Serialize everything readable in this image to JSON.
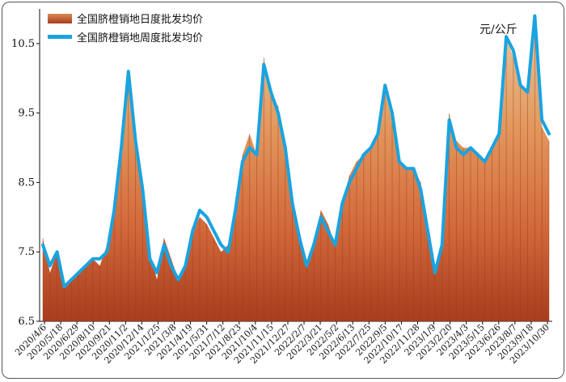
{
  "chart_data": {
    "type": "area",
    "unit_label": "元/公斤",
    "ylim": [
      6.5,
      11.0
    ],
    "yticks": [
      6.5,
      7.5,
      8.5,
      9.5,
      10.5
    ],
    "x_tick_labels": [
      "2020/4/6",
      "2020/5/18",
      "2020/6/29",
      "2020/8/10",
      "2020/9/21",
      "2020/11/2",
      "2020/12/14",
      "2021/1/25",
      "2021/3/8",
      "2021/4/19",
      "2021/5/31",
      "2021/7/12",
      "2021/8/23",
      "2021/10/4",
      "2021/11/15",
      "2021/12/27",
      "2022/2/7",
      "2022/3/21",
      "2022/5/2",
      "2022/6/13",
      "2022/7/25",
      "2022/9/5",
      "2022/10/17",
      "2022/11/28",
      "2023/1/9",
      "2023/2/20",
      "2023/4/3",
      "2023/5/15",
      "2023/6/26",
      "2023/8/7",
      "2023/9/18",
      "2023/10/30"
    ],
    "series": [
      {
        "name": "全国脐橙销地日度批发均价",
        "type": "area",
        "color": "#c0502a",
        "values": [
          7.7,
          7.2,
          7.5,
          7.0,
          7.1,
          7.2,
          7.3,
          7.4,
          7.3,
          7.6,
          8.0,
          9.0,
          10.1,
          9.2,
          8.5,
          7.5,
          7.1,
          7.7,
          7.4,
          7.1,
          7.3,
          7.8,
          8.0,
          7.9,
          7.7,
          7.5,
          7.6,
          8.2,
          8.9,
          9.2,
          8.9,
          10.3,
          9.8,
          9.6,
          9.0,
          8.3,
          7.8,
          7.3,
          7.6,
          8.1,
          7.9,
          7.6,
          8.2,
          8.6,
          8.8,
          8.9,
          9.0,
          9.2,
          9.8,
          9.4,
          8.8,
          8.7,
          8.7,
          8.5,
          7.9,
          7.2,
          7.6,
          9.5,
          9.1,
          9.0,
          9.0,
          8.9,
          8.8,
          9.0,
          9.2,
          10.6,
          10.3,
          9.9,
          9.8,
          10.9,
          9.3,
          9.1
        ]
      },
      {
        "name": "全国脐橙销地周度批发均价",
        "type": "line",
        "color": "#1aa3e0",
        "values": [
          7.6,
          7.3,
          7.5,
          7.0,
          7.1,
          7.2,
          7.3,
          7.4,
          7.4,
          7.5,
          8.1,
          9.0,
          10.1,
          9.1,
          8.4,
          7.4,
          7.2,
          7.6,
          7.3,
          7.1,
          7.3,
          7.8,
          8.1,
          8.0,
          7.8,
          7.6,
          7.5,
          8.1,
          8.8,
          9.0,
          8.9,
          10.2,
          9.8,
          9.5,
          9.0,
          8.2,
          7.7,
          7.3,
          7.6,
          8.0,
          7.8,
          7.6,
          8.2,
          8.5,
          8.7,
          8.9,
          9.0,
          9.2,
          9.9,
          9.5,
          8.8,
          8.7,
          8.7,
          8.4,
          7.8,
          7.2,
          7.6,
          9.4,
          9.0,
          8.9,
          9.0,
          8.9,
          8.8,
          9.0,
          9.2,
          10.6,
          10.4,
          9.9,
          9.8,
          10.9,
          9.4,
          9.2
        ]
      }
    ],
    "legend_position": "top-left",
    "grid": false
  }
}
